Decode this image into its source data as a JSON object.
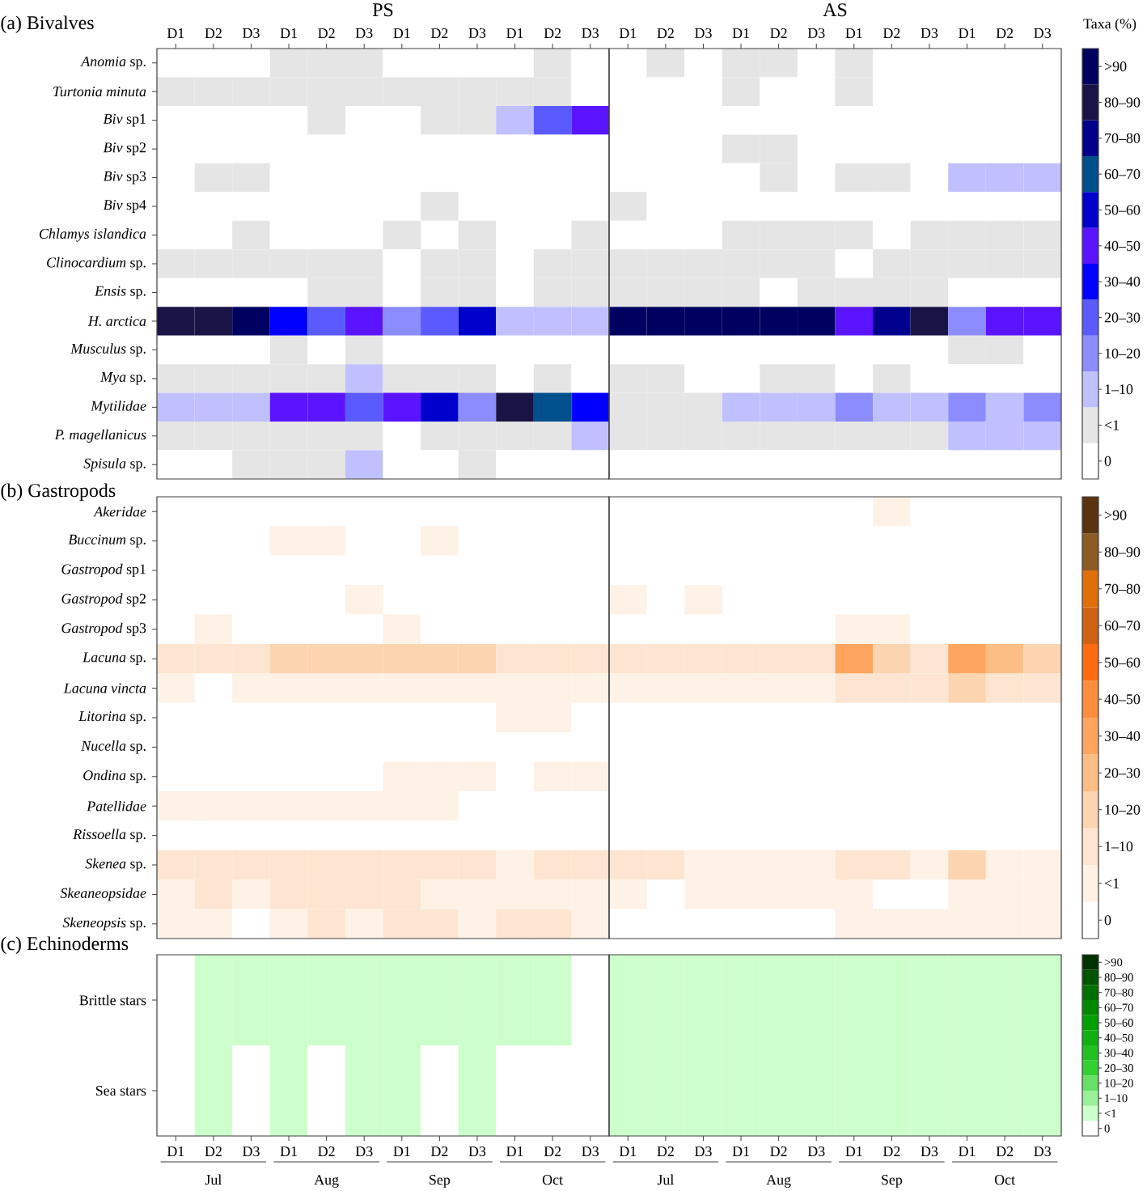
{
  "chart_data": [
    {
      "type": "heatmap",
      "subtitle": "(a) Bivalves",
      "clabel": "Taxa (%)",
      "annotations": [
        "PS",
        "AS"
      ],
      "categories": [
        "D1",
        "D2",
        "D3",
        "D1",
        "D2",
        "D3",
        "D1",
        "D2",
        "D3",
        "D1",
        "D2",
        "D3",
        "D1",
        "D2",
        "D3",
        "D1",
        "D2",
        "D3",
        "D1",
        "D2",
        "D3",
        "D1",
        "D2",
        "D3"
      ],
      "y_categories": [
        "*Anomia* sp.",
        "*Turtonia minuta*",
        "*Biv* sp1",
        "*Biv* sp2",
        "*Biv* sp3",
        "*Biv* sp4",
        "*Chlamys islandica*",
        "*Clinocardium* sp.",
        "*Ensis* sp.",
        "*H. arctica*",
        "*Musculus* sp.",
        "*Mya* sp.",
        "*Mytilidae*",
        "*P. magellanicus*",
        "*Spisula* sp."
      ],
      "colors": [
        "#ffffff",
        "#e5e5e5",
        "#c0c0ff",
        "#8c8cff",
        "#5a5aff",
        "#0000ff",
        "#5a14ff",
        "#0000cc",
        "#00508c",
        "#00008c",
        "#1a1446",
        "#000060"
      ],
      "clim": [
        -0.5,
        11.5
      ],
      "cticks": [
        {
          "value": 0,
          "label": "0"
        },
        {
          "value": 1,
          "label": "<1"
        },
        {
          "value": 2,
          "label": "1–10"
        },
        {
          "value": 3,
          "label": "10–20"
        },
        {
          "value": 4,
          "label": "20–30"
        },
        {
          "value": 5,
          "label": "30–40"
        },
        {
          "value": 6,
          "label": "40–50"
        },
        {
          "value": 7,
          "label": "50–60"
        },
        {
          "value": 8,
          "label": "60–70"
        },
        {
          "value": 9,
          "label": "70–80"
        },
        {
          "value": 10,
          "label": "80–90"
        },
        {
          "value": 11,
          "label": ">90"
        }
      ],
      "cells": [
        [
          0,
          0,
          0,
          1,
          1,
          1,
          0,
          0,
          0,
          0,
          1,
          0,
          0,
          1,
          0,
          1,
          1,
          0,
          1,
          0,
          0,
          0,
          0,
          0
        ],
        [
          1,
          1,
          1,
          1,
          1,
          1,
          1,
          1,
          1,
          1,
          1,
          0,
          0,
          0,
          0,
          1,
          0,
          0,
          1,
          0,
          0,
          0,
          0,
          0
        ],
        [
          0,
          0,
          0,
          0,
          1,
          0,
          0,
          1,
          1,
          2,
          4,
          6,
          0,
          0,
          0,
          0,
          0,
          0,
          0,
          0,
          0,
          0,
          0,
          0
        ],
        [
          0,
          0,
          0,
          0,
          0,
          0,
          0,
          0,
          0,
          0,
          0,
          0,
          0,
          0,
          0,
          1,
          1,
          0,
          0,
          0,
          0,
          0,
          0,
          0
        ],
        [
          0,
          1,
          1,
          0,
          0,
          0,
          0,
          0,
          0,
          0,
          0,
          0,
          0,
          0,
          0,
          0,
          1,
          0,
          1,
          1,
          0,
          2,
          2,
          2
        ],
        [
          0,
          0,
          0,
          0,
          0,
          0,
          0,
          1,
          0,
          0,
          0,
          0,
          1,
          0,
          0,
          0,
          0,
          0,
          0,
          0,
          0,
          0,
          0,
          0
        ],
        [
          0,
          0,
          1,
          0,
          0,
          0,
          1,
          0,
          1,
          0,
          0,
          1,
          0,
          0,
          0,
          1,
          1,
          1,
          1,
          0,
          1,
          1,
          1,
          1
        ],
        [
          1,
          1,
          1,
          1,
          1,
          1,
          0,
          1,
          1,
          0,
          1,
          1,
          1,
          1,
          1,
          1,
          1,
          1,
          0,
          1,
          1,
          1,
          1,
          1
        ],
        [
          0,
          0,
          0,
          0,
          1,
          1,
          0,
          1,
          1,
          0,
          1,
          1,
          1,
          1,
          1,
          1,
          0,
          1,
          1,
          1,
          1,
          0,
          0,
          0
        ],
        [
          10,
          10,
          11,
          5,
          4,
          6,
          3,
          4,
          7,
          2,
          2,
          2,
          11,
          11,
          11,
          11,
          11,
          11,
          6,
          9,
          10,
          3,
          6,
          6
        ],
        [
          0,
          0,
          0,
          1,
          0,
          1,
          0,
          0,
          0,
          0,
          0,
          0,
          0,
          0,
          0,
          0,
          0,
          0,
          0,
          0,
          0,
          1,
          1,
          0
        ],
        [
          1,
          1,
          1,
          1,
          1,
          2,
          1,
          1,
          1,
          0,
          1,
          0,
          1,
          1,
          0,
          0,
          1,
          1,
          0,
          1,
          0,
          0,
          0,
          0
        ],
        [
          2,
          2,
          2,
          6,
          6,
          4,
          6,
          7,
          3,
          10,
          8,
          5,
          1,
          1,
          1,
          2,
          2,
          2,
          3,
          2,
          2,
          3,
          2,
          3
        ],
        [
          1,
          1,
          1,
          1,
          1,
          1,
          0,
          1,
          1,
          1,
          1,
          2,
          1,
          1,
          1,
          1,
          1,
          1,
          1,
          1,
          1,
          2,
          2,
          2
        ],
        [
          0,
          0,
          1,
          1,
          1,
          2,
          0,
          0,
          1,
          0,
          0,
          0,
          0,
          0,
          0,
          0,
          0,
          0,
          0,
          0,
          0,
          0,
          0,
          0
        ]
      ]
    },
    {
      "type": "heatmap",
      "subtitle": "(b) Gastropods",
      "tick_labels": "y",
      "categories": [
        null,
        null,
        null,
        null,
        null,
        null,
        null,
        null,
        null,
        null,
        null,
        null,
        null,
        null,
        null,
        null,
        null,
        null,
        null,
        null,
        null,
        null,
        null,
        null
      ],
      "y_categories": [
        "*Akeridae*",
        "*Buccinum* sp.",
        "*Gastropod* sp1",
        "*Gastropod* sp2",
        "*Gastropod* sp3",
        "*Lacuna* sp.",
        "*Lacuna vincta*",
        "*Litorina* sp.",
        "*Nucella* sp.",
        "*Ondina* sp.",
        "*Patellidae*",
        "*Rissoella* sp.",
        "*Skenea* sp.",
        "*Skeaneopsidae*",
        "*Skeneopsis* sp."
      ],
      "colors": [
        "#ffffff",
        "#fef1e6",
        "#fde5d1",
        "#fdd4b0",
        "#fdbe86",
        "#fda55e",
        "#fd8d3c",
        "#fe6b10",
        "#d06214",
        "#e06f0a",
        "#8c5a24",
        "#5a3410"
      ],
      "clim": [
        -0.5,
        11.5
      ],
      "cticks": [
        {
          "value": 0,
          "label": "0"
        },
        {
          "value": 1,
          "label": "<1"
        },
        {
          "value": 2,
          "label": "1–10"
        },
        {
          "value": 3,
          "label": "10–20"
        },
        {
          "value": 4,
          "label": "20–30"
        },
        {
          "value": 5,
          "label": "30–40"
        },
        {
          "value": 6,
          "label": "40–50"
        },
        {
          "value": 7,
          "label": "50–60"
        },
        {
          "value": 8,
          "label": "60–70"
        },
        {
          "value": 9,
          "label": "70–80"
        },
        {
          "value": 10,
          "label": "80–90"
        },
        {
          "value": 11,
          "label": ">90"
        }
      ],
      "cells": [
        [
          0,
          0,
          0,
          0,
          0,
          0,
          0,
          0,
          0,
          0,
          0,
          0,
          0,
          0,
          0,
          0,
          0,
          0,
          0,
          1,
          0,
          0,
          0,
          0
        ],
        [
          0,
          0,
          0,
          1,
          1,
          0,
          0,
          1,
          0,
          0,
          0,
          0,
          0,
          0,
          0,
          0,
          0,
          0,
          0,
          0,
          0,
          0,
          0,
          0
        ],
        [
          0,
          0,
          0,
          0,
          0,
          0,
          0,
          0,
          0,
          0,
          0,
          0,
          0,
          0,
          0,
          0,
          0,
          0,
          0,
          0,
          0,
          0,
          0,
          0
        ],
        [
          0,
          0,
          0,
          0,
          0,
          1,
          0,
          0,
          0,
          0,
          0,
          0,
          1,
          0,
          1,
          0,
          0,
          0,
          0,
          0,
          0,
          0,
          0,
          0
        ],
        [
          0,
          1,
          0,
          0,
          0,
          0,
          1,
          0,
          0,
          0,
          0,
          0,
          0,
          0,
          0,
          0,
          0,
          0,
          1,
          1,
          0,
          0,
          0,
          0
        ],
        [
          2,
          2,
          2,
          3,
          3,
          3,
          3,
          3,
          3,
          2,
          2,
          2,
          2,
          2,
          2,
          2,
          2,
          2,
          5,
          3,
          2,
          5,
          4,
          3
        ],
        [
          1,
          0,
          1,
          1,
          1,
          1,
          1,
          1,
          1,
          1,
          1,
          1,
          1,
          1,
          1,
          1,
          1,
          1,
          2,
          2,
          2,
          3,
          2,
          2
        ],
        [
          0,
          0,
          0,
          0,
          0,
          0,
          0,
          0,
          0,
          1,
          1,
          0,
          0,
          0,
          0,
          0,
          0,
          0,
          0,
          0,
          0,
          0,
          0,
          0
        ],
        [
          0,
          0,
          0,
          0,
          0,
          0,
          0,
          0,
          0,
          0,
          0,
          0,
          0,
          0,
          0,
          0,
          0,
          0,
          0,
          0,
          0,
          0,
          0,
          0
        ],
        [
          0,
          0,
          0,
          0,
          0,
          0,
          1,
          1,
          1,
          0,
          1,
          1,
          0,
          0,
          0,
          0,
          0,
          0,
          0,
          0,
          0,
          0,
          0,
          0
        ],
        [
          1,
          1,
          1,
          1,
          1,
          1,
          1,
          1,
          0,
          0,
          0,
          0,
          0,
          0,
          0,
          0,
          0,
          0,
          0,
          0,
          0,
          0,
          0,
          0
        ],
        [
          0,
          0,
          0,
          0,
          0,
          0,
          0,
          0,
          0,
          0,
          0,
          0,
          0,
          0,
          0,
          0,
          0,
          0,
          0,
          0,
          0,
          0,
          0,
          0
        ],
        [
          2,
          2,
          2,
          2,
          2,
          2,
          2,
          2,
          2,
          1,
          2,
          2,
          2,
          2,
          1,
          1,
          1,
          1,
          2,
          2,
          1,
          3,
          1,
          1
        ],
        [
          1,
          2,
          1,
          2,
          2,
          2,
          2,
          1,
          1,
          1,
          1,
          1,
          1,
          0,
          1,
          1,
          1,
          1,
          1,
          0,
          0,
          1,
          1,
          1
        ],
        [
          1,
          1,
          0,
          1,
          2,
          1,
          2,
          2,
          1,
          2,
          2,
          1,
          0,
          0,
          0,
          0,
          0,
          0,
          1,
          1,
          1,
          1,
          1,
          1
        ]
      ]
    },
    {
      "type": "heatmap",
      "subtitle": "(c) Echinoderms",
      "annotations": [
        "Jul",
        "Aug",
        "Sep",
        "Oct",
        "Jul",
        "Aug",
        "Sep",
        "Oct"
      ],
      "categories": [
        "D1",
        "D2",
        "D3",
        "D1",
        "D2",
        "D3",
        "D1",
        "D2",
        "D3",
        "D1",
        "D2",
        "D3",
        "D1",
        "D2",
        "D3",
        "D1",
        "D2",
        "D3",
        "D1",
        "D2",
        "D3",
        "D1",
        "D2",
        "D3"
      ],
      "y_categories": [
        "Brittle stars",
        "Sea stars"
      ],
      "colors": [
        "#ffffff",
        "#ccffcc",
        "#99f099",
        "#66e066",
        "#33d033",
        "#22c022",
        "#10b010",
        "#00a000",
        "#008800",
        "#007000",
        "#005500",
        "#003300"
      ],
      "clim": [
        -0.5,
        11.5
      ],
      "cticks": [
        {
          "value": 0,
          "label": "0"
        },
        {
          "value": 1,
          "label": "<1"
        },
        {
          "value": 2,
          "label": "1–10"
        },
        {
          "value": 3,
          "label": "10–20"
        },
        {
          "value": 4,
          "label": "20–30"
        },
        {
          "value": 5,
          "label": "30–40"
        },
        {
          "value": 6,
          "label": "40–50"
        },
        {
          "value": 7,
          "label": "50–60"
        },
        {
          "value": 8,
          "label": "60–70"
        },
        {
          "value": 9,
          "label": "70–80"
        },
        {
          "value": 10,
          "label": "80–90"
        },
        {
          "value": 11,
          "label": ">90"
        }
      ],
      "cells": [
        [
          0,
          1,
          1,
          1,
          1,
          1,
          1,
          1,
          1,
          1,
          1,
          0,
          1,
          1,
          1,
          1,
          1,
          1,
          1,
          1,
          1,
          1,
          1,
          1
        ],
        [
          0,
          1,
          0,
          1,
          0,
          1,
          1,
          0,
          1,
          0,
          0,
          0,
          1,
          1,
          1,
          1,
          1,
          1,
          1,
          1,
          1,
          1,
          1,
          1
        ]
      ]
    }
  ]
}
